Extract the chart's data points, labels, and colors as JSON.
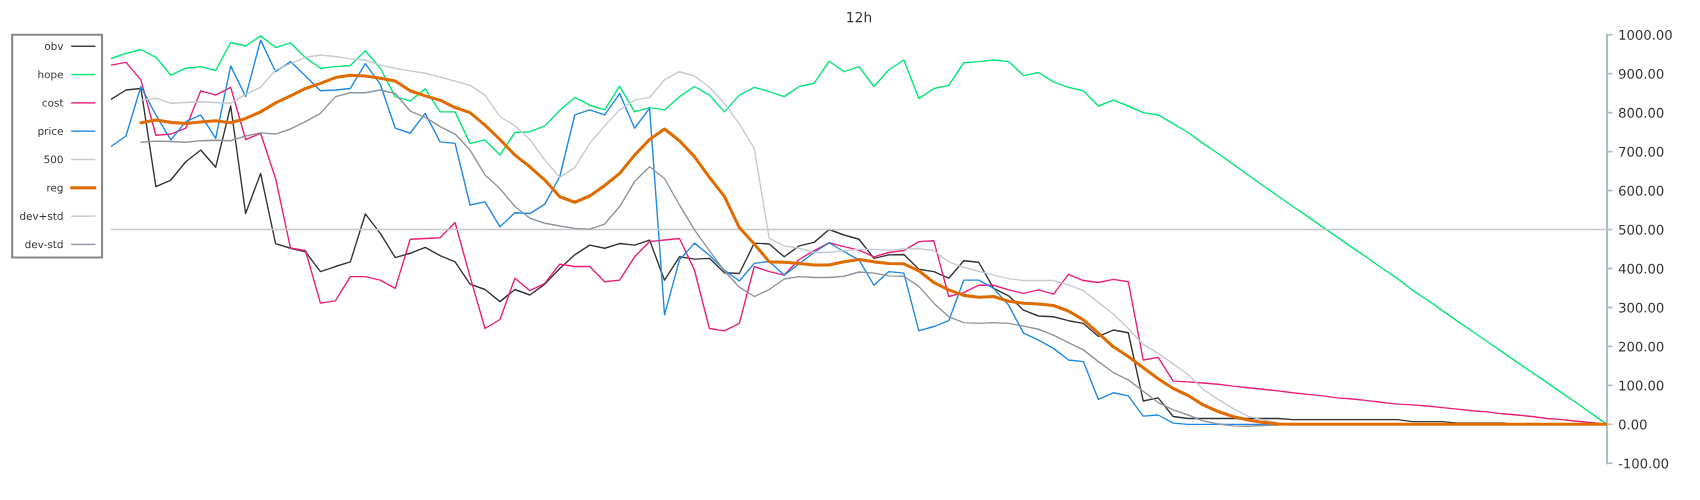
{
  "chart_data": {
    "type": "line",
    "title": "12h",
    "categories": [
      null,
      null,
      null,
      null,
      null,
      null,
      null,
      null,
      null,
      null,
      null,
      null,
      null,
      null,
      null,
      null,
      null,
      null,
      null,
      null,
      null,
      null,
      null,
      null,
      null,
      null,
      null,
      null,
      null,
      null,
      null,
      null,
      null,
      null,
      null,
      null,
      null,
      null,
      null,
      null,
      null,
      null,
      null,
      null,
      null,
      null,
      null,
      null,
      null,
      null,
      null,
      null,
      null,
      null,
      null,
      null,
      null,
      null,
      null,
      null,
      null,
      null,
      null,
      null,
      null,
      null,
      null,
      null,
      null,
      null,
      null,
      null,
      null,
      null,
      null,
      null,
      null,
      null,
      null,
      null,
      null,
      null,
      null,
      null,
      null,
      null,
      null,
      null,
      null,
      null,
      null,
      null,
      null,
      null,
      null,
      null,
      null,
      null,
      null,
      null,
      null
    ],
    "series": [
      {
        "name": "obv",
        "color": "#333333",
        "values": [
          834,
          858,
          862,
          610,
          627,
          674,
          704,
          660,
          817,
          541,
          644,
          464,
          452,
          443,
          392,
          405,
          417,
          540,
          490,
          428,
          439,
          454,
          433,
          417,
          360,
          346,
          315,
          346,
          332,
          360,
          400,
          435,
          460,
          452,
          464,
          460,
          473,
          370,
          430,
          424,
          426,
          389,
          387,
          465,
          463,
          430,
          458,
          467,
          500,
          486,
          475,
          426,
          435,
          436,
          398,
          392,
          375,
          420,
          416,
          349,
          330,
          293,
          278,
          276,
          266,
          259,
          226,
          242,
          235,
          60,
          68,
          20,
          15,
          15,
          15,
          15,
          15,
          15,
          15,
          12,
          12,
          12,
          12,
          12,
          12,
          12,
          12,
          7,
          7,
          7,
          3,
          3,
          3,
          3,
          0,
          0,
          0,
          0,
          0,
          0,
          0
        ]
      },
      {
        "name": "hope",
        "color": "#00e676",
        "values": [
          939,
          952,
          962,
          942,
          896,
          914,
          918,
          908,
          980,
          971,
          997,
          967,
          979,
          941,
          914,
          918,
          921,
          959,
          914,
          841,
          830,
          861,
          802,
          802,
          721,
          730,
          691,
          749,
          751,
          766,
          806,
          839,
          819,
          807,
          868,
          802,
          813,
          807,
          841,
          867,
          845,
          802,
          845,
          865,
          854,
          841,
          867,
          875,
          932,
          905,
          918,
          867,
          910,
          935,
          836,
          862,
          870,
          928,
          931,
          935,
          931,
          895,
          903,
          879,
          865,
          856,
          817,
          832,
          817,
          800,
          794,
          772,
          749,
          721,
          695,
          668,
          640,
          613,
          586,
          559,
          533,
          506,
          480,
          453,
          427,
          400,
          374,
          344,
          319,
          292,
          265,
          239,
          212,
          186,
          159,
          133,
          107,
          80,
          54,
          27,
          0
        ]
      },
      {
        "name": "cost",
        "color": "#e91e78",
        "values": [
          922,
          929,
          884,
          742,
          745,
          760,
          856,
          845,
          865,
          731,
          747,
          631,
          452,
          446,
          311,
          317,
          379,
          379,
          370,
          349,
          475,
          477,
          479,
          518,
          379,
          246,
          269,
          375,
          343,
          362,
          411,
          405,
          405,
          366,
          370,
          430,
          469,
          473,
          477,
          396,
          246,
          240,
          259,
          405,
          392,
          383,
          423,
          446,
          466,
          456,
          447,
          430,
          441,
          446,
          469,
          471,
          328,
          338,
          357,
          357,
          345,
          336,
          345,
          334,
          385,
          369,
          364,
          372,
          366,
          165,
          172,
          111,
          109,
          106,
          103,
          98,
          94,
          90,
          86,
          81,
          77,
          73,
          68,
          65,
          61,
          56,
          52,
          50,
          47,
          43,
          39,
          35,
          32,
          27,
          24,
          20,
          15,
          12,
          8,
          4,
          0
        ]
      },
      {
        "name": "price",
        "color": "#1e88e5",
        "values": [
          713,
          740,
          867,
          794,
          730,
          777,
          794,
          734,
          920,
          841,
          986,
          905,
          931,
          894,
          856,
          858,
          862,
          926,
          873,
          760,
          747,
          798,
          725,
          721,
          563,
          571,
          507,
          543,
          541,
          565,
          636,
          794,
          807,
          794,
          849,
          760,
          811,
          281,
          422,
          465,
          434,
          396,
          368,
          413,
          418,
          383,
          412,
          441,
          466,
          443,
          422,
          357,
          392,
          388,
          240,
          251,
          266,
          370,
          370,
          349,
          306,
          234,
          216,
          195,
          165,
          161,
          64,
          81,
          73,
          21,
          24,
          3,
          0,
          0,
          0,
          0,
          0,
          0,
          0,
          null,
          null,
          null,
          null,
          null,
          null,
          null,
          null,
          null,
          null,
          null,
          null,
          null,
          null,
          null,
          null,
          null,
          null,
          null,
          null,
          null,
          null
        ]
      },
      {
        "name": "500",
        "color": "#c8c8c8",
        "values": [
          500,
          500,
          500,
          500,
          500,
          500,
          500,
          500,
          500,
          500,
          500,
          500,
          500,
          500,
          500,
          500,
          500,
          500,
          500,
          500,
          500,
          500,
          500,
          500,
          500,
          500,
          500,
          500,
          500,
          500,
          500,
          500,
          500,
          500,
          500,
          500,
          500,
          500,
          500,
          500,
          500,
          500,
          500,
          500,
          500,
          500,
          500,
          500,
          500,
          500,
          500,
          500,
          500,
          500,
          500,
          500,
          500,
          500,
          500,
          500,
          500,
          500,
          500,
          500,
          500,
          500,
          500,
          500,
          500,
          500,
          500,
          500,
          500,
          500,
          500,
          500,
          500,
          500,
          500,
          500,
          500,
          500,
          500,
          500,
          500,
          500,
          500,
          500,
          500,
          500,
          500,
          500,
          500,
          500,
          500,
          500,
          500,
          500,
          500,
          500,
          500
        ]
      },
      {
        "name": "reg",
        "color": "#e06c00",
        "values": [
          null,
          null,
          774,
          781,
          775,
          772,
          776,
          779,
          774,
          785,
          802,
          825,
          843,
          862,
          875,
          890,
          896,
          894,
          888,
          881,
          856,
          843,
          832,
          813,
          800,
          768,
          731,
          691,
          661,
          627,
          584,
          570,
          586,
          613,
          644,
          691,
          731,
          758,
          728,
          687,
          634,
          585,
          505,
          463,
          417,
          416,
          413,
          409,
          409,
          417,
          423,
          417,
          413,
          412,
          394,
          364,
          345,
          331,
          326,
          328,
          316,
          311,
          309,
          305,
          291,
          268,
          234,
          199,
          174,
          145,
          117,
          92,
          74,
          50,
          33,
          20,
          11,
          5,
          1,
          0,
          0,
          0,
          0,
          0,
          0,
          0,
          0,
          0,
          0,
          0,
          0,
          0,
          0,
          0,
          0,
          0,
          0,
          0,
          0,
          0,
          0
        ]
      },
      {
        "name": "dev+std",
        "color": "#c5cad0",
        "values": [
          null,
          null,
          832,
          837,
          824,
          826,
          828,
          826,
          824,
          847,
          865,
          909,
          926,
          942,
          948,
          944,
          938,
          935,
          922,
          914,
          907,
          901,
          891,
          881,
          870,
          845,
          790,
          766,
          731,
          678,
          634,
          659,
          721,
          766,
          807,
          832,
          839,
          884,
          905,
          894,
          865,
          824,
          771,
          708,
          477,
          458,
          452,
          441,
          441,
          446,
          449,
          449,
          447,
          450,
          451,
          446,
          417,
          403,
          393,
          383,
          374,
          369,
          369,
          369,
          358,
          343,
          313,
          283,
          246,
          205,
          182,
          155,
          128,
          90,
          64,
          41,
          21,
          11,
          4,
          null,
          null,
          null,
          null,
          null,
          null,
          null,
          null,
          null,
          null,
          null,
          null,
          null,
          null,
          null,
          null,
          null,
          null,
          null,
          null,
          null,
          null
        ]
      },
      {
        "name": "dev-std",
        "color": "#8c959d",
        "values": [
          null,
          null,
          724,
          727,
          726,
          724,
          728,
          729,
          728,
          740,
          748,
          745,
          758,
          777,
          798,
          841,
          851,
          851,
          858,
          849,
          804,
          788,
          764,
          745,
          704,
          640,
          605,
          559,
          529,
          516,
          509,
          503,
          501,
          514,
          559,
          623,
          661,
          631,
          563,
          499,
          446,
          394,
          352,
          328,
          346,
          373,
          379,
          377,
          377,
          380,
          391,
          388,
          381,
          380,
          354,
          311,
          276,
          261,
          259,
          261,
          259,
          252,
          244,
          229,
          210,
          191,
          161,
          133,
          114,
          85,
          56,
          37,
          24,
          9,
          1,
          -4,
          -5,
          -3,
          -2,
          null,
          null,
          null,
          null,
          null,
          null,
          null,
          null,
          null,
          null,
          null,
          null,
          null,
          null,
          null,
          null,
          null,
          null,
          null,
          null,
          null,
          null
        ]
      }
    ],
    "ylim": [
      -100,
      1000
    ],
    "yticks": [
      {
        "value": -100,
        "label": "-100.00"
      },
      {
        "value": 0,
        "label": "0.00"
      },
      {
        "value": 100,
        "label": "100.00"
      },
      {
        "value": 200,
        "label": "200.00"
      },
      {
        "value": 300,
        "label": "300.00"
      },
      {
        "value": 400,
        "label": "400.00"
      },
      {
        "value": 500,
        "label": "500.00"
      },
      {
        "value": 600,
        "label": "600.00"
      },
      {
        "value": 700,
        "label": "700.00"
      },
      {
        "value": 800,
        "label": "800.00"
      },
      {
        "value": 900,
        "label": "900.00"
      },
      {
        "value": 1000,
        "label": "1000.00"
      }
    ],
    "tick_labels": "y",
    "legend": "top left"
  }
}
